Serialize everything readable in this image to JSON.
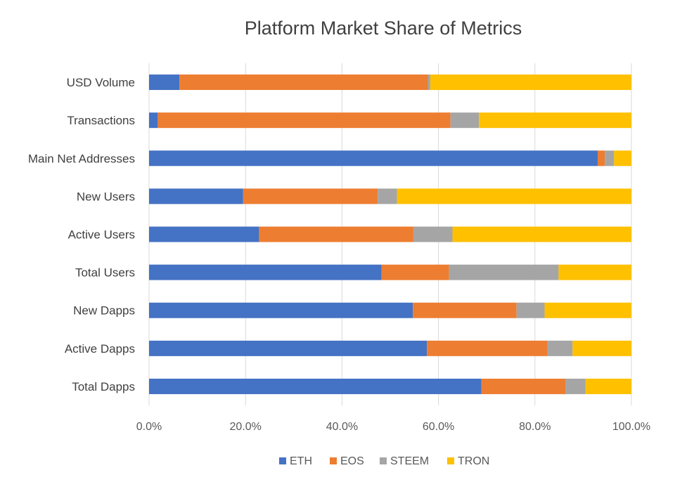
{
  "chart_data": {
    "type": "bar",
    "orientation": "horizontal",
    "stacked": "percent",
    "title": "Platform Market Share of Metrics",
    "xlabel": "",
    "ylabel": "",
    "xlim": [
      0,
      100
    ],
    "x_ticks": [
      "0.0%",
      "20.0%",
      "40.0%",
      "60.0%",
      "80.0%",
      "100.0%"
    ],
    "grid": "vertical",
    "legend_position": "bottom",
    "categories": [
      "USD Volume",
      "Transactions",
      "Main Net Addresses",
      "New Users",
      "Active Users",
      "Total Users",
      "New Dapps",
      "Active Dapps",
      "Total Dapps"
    ],
    "series": [
      {
        "name": "ETH",
        "color": "#4472c4",
        "values": [
          6.3,
          1.8,
          93.0,
          19.5,
          22.8,
          48.2,
          54.7,
          57.6,
          68.9
        ]
      },
      {
        "name": "EOS",
        "color": "#ed7d31",
        "values": [
          51.5,
          60.7,
          1.5,
          27.9,
          32.0,
          14.0,
          21.5,
          25.0,
          17.4
        ]
      },
      {
        "name": "STEEM",
        "color": "#a5a5a5",
        "values": [
          0.5,
          5.9,
          1.9,
          4.0,
          8.1,
          22.7,
          5.8,
          5.2,
          4.2
        ]
      },
      {
        "name": "TRON",
        "color": "#ffc000",
        "values": [
          41.7,
          31.6,
          3.6,
          48.6,
          37.1,
          15.1,
          18.0,
          12.2,
          9.5
        ]
      }
    ]
  }
}
